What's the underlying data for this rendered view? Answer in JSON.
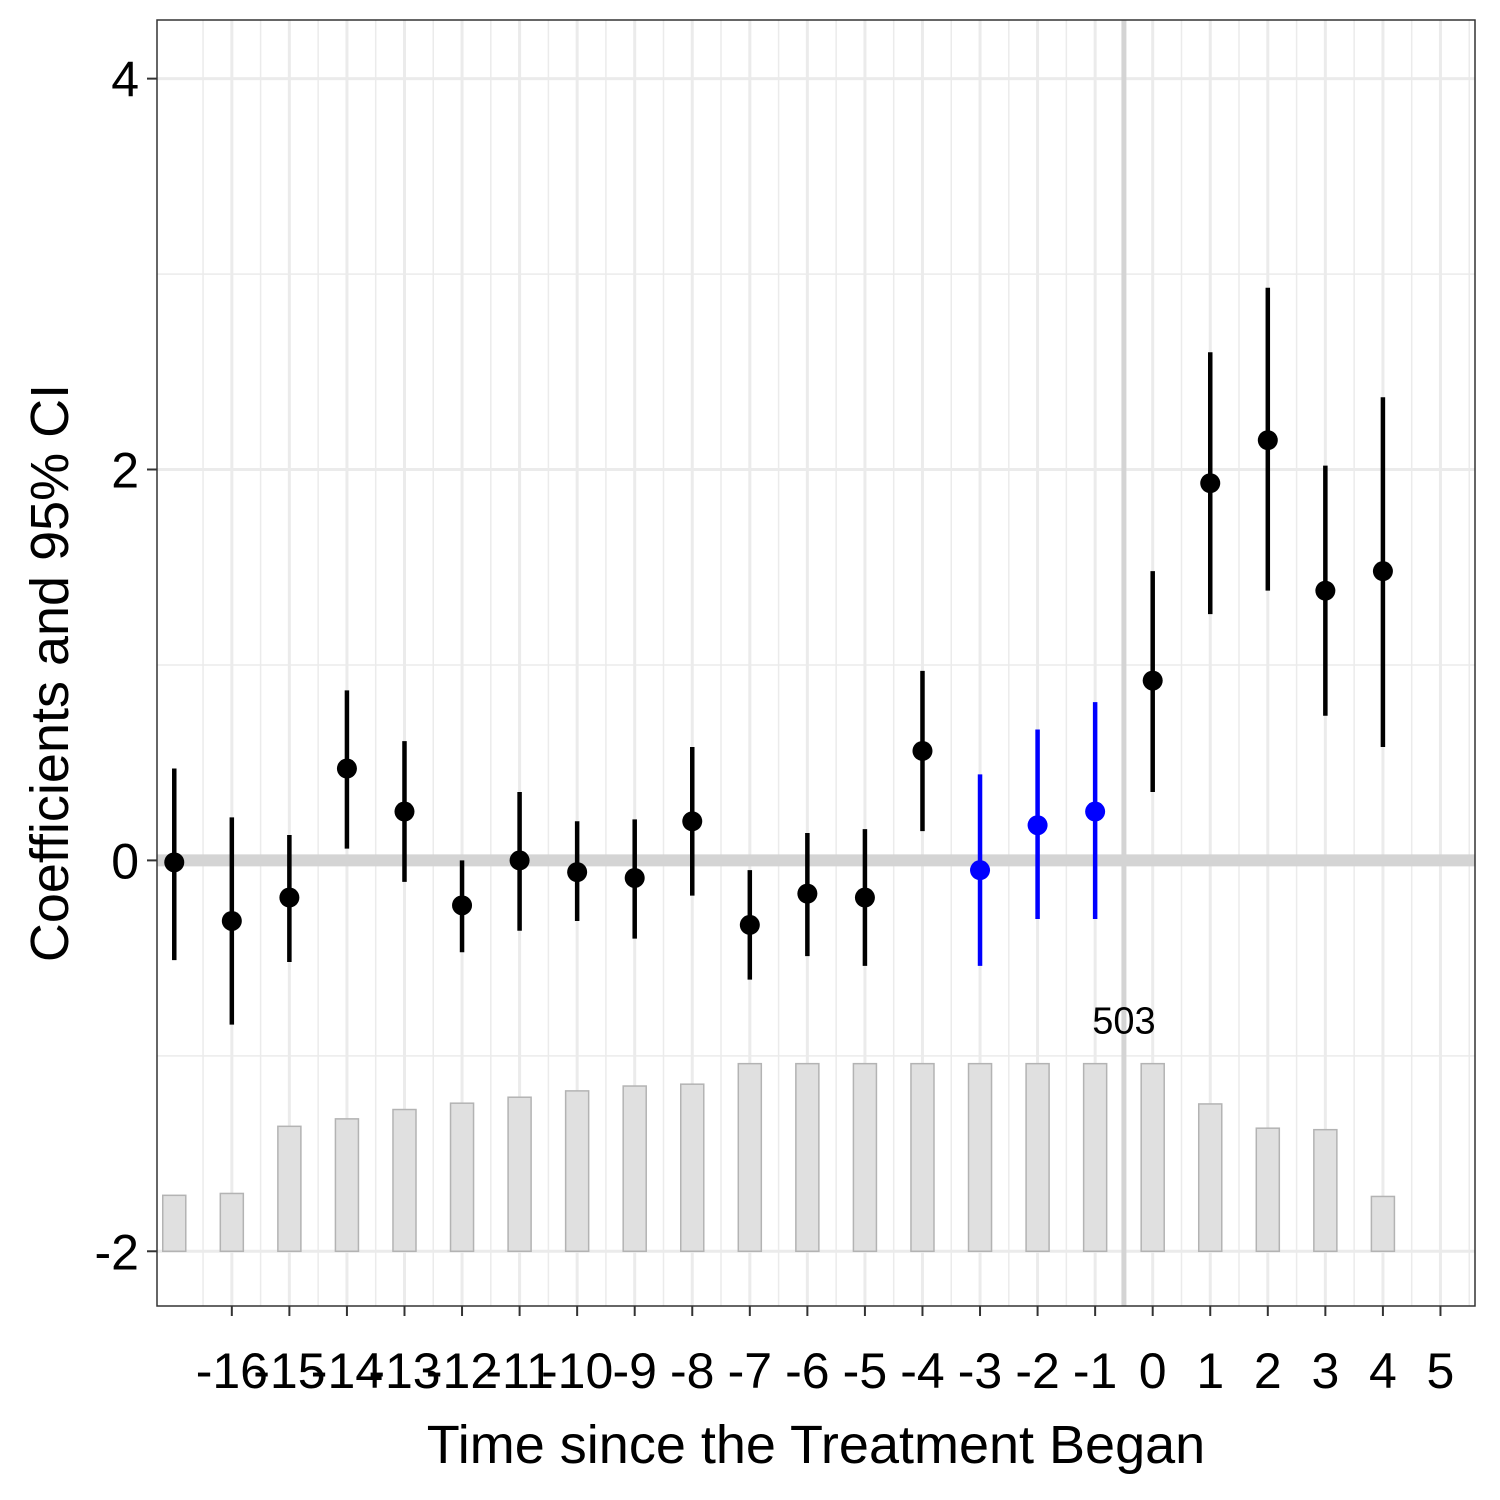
{
  "chart_data": {
    "type": "scatter",
    "title": "",
    "xlabel": "Time since the Treatment Began",
    "ylabel": "Coefficients and 95% CI",
    "ylim": [
      -2.28,
      4.3
    ],
    "xlim": [
      -17.3,
      5.6
    ],
    "y_ticks": [
      -2,
      0,
      2,
      4
    ],
    "y_tick_labels": [
      "-2",
      "0",
      "2",
      "4"
    ],
    "x_ticks": [
      -16,
      -15,
      -14,
      -13,
      -12,
      -11,
      -10,
      -9,
      -8,
      -7,
      -6,
      -5,
      -4,
      -3,
      -2,
      -1,
      0,
      1,
      2,
      3,
      4,
      5
    ],
    "x_tick_labels": [
      "-16",
      "-15",
      "-14",
      "-13",
      "-12",
      "-11",
      "-10",
      "-9",
      "-8",
      "-7",
      "-6",
      "-5",
      "-4",
      "-3",
      "-2",
      "-1",
      "0",
      "1",
      "2",
      "3",
      "4",
      "5"
    ],
    "grid": true,
    "reference_lines": {
      "y": 0,
      "x": -0.5
    },
    "colors": {
      "default": "#000000",
      "highlight": "#0000ff",
      "bar": "#e0e0e0",
      "bar_edge": "#b3b3b3",
      "grid": "#ebebeb",
      "reference": "#d4d4d4"
    },
    "x": [
      -17,
      -16,
      -15,
      -14,
      -13,
      -12,
      -11,
      -10,
      -9,
      -8,
      -7,
      -6,
      -5,
      -4,
      -3,
      -2,
      -1,
      0,
      1,
      2,
      3,
      4
    ],
    "estimate": [
      -0.01,
      -0.31,
      -0.19,
      0.47,
      0.25,
      -0.23,
      0.0,
      -0.06,
      -0.09,
      0.2,
      -0.33,
      -0.17,
      -0.19,
      0.56,
      -0.05,
      0.18,
      0.25,
      0.92,
      1.93,
      2.15,
      1.38,
      1.48
    ],
    "ci_lower": [
      -0.51,
      -0.84,
      -0.52,
      0.06,
      -0.11,
      -0.47,
      -0.36,
      -0.31,
      -0.4,
      -0.18,
      -0.61,
      -0.49,
      -0.54,
      0.15,
      -0.54,
      -0.3,
      -0.3,
      0.35,
      1.26,
      1.38,
      0.74,
      0.58
    ],
    "ci_upper": [
      0.47,
      0.22,
      0.13,
      0.87,
      0.61,
      0.0,
      0.35,
      0.2,
      0.21,
      0.58,
      -0.05,
      0.14,
      0.16,
      0.97,
      0.44,
      0.67,
      0.81,
      1.48,
      2.6,
      2.93,
      2.02,
      2.37
    ],
    "highlighted_x": [
      -3,
      -2,
      -1
    ],
    "bar_counts": [
      150,
      155,
      335,
      355,
      380,
      397,
      413,
      430,
      443,
      448,
      503,
      503,
      503,
      503,
      503,
      503,
      503,
      503,
      395,
      330,
      326,
      147
    ],
    "bar_max": 503,
    "bar_label": "503",
    "bar_label_x": -0.5
  }
}
